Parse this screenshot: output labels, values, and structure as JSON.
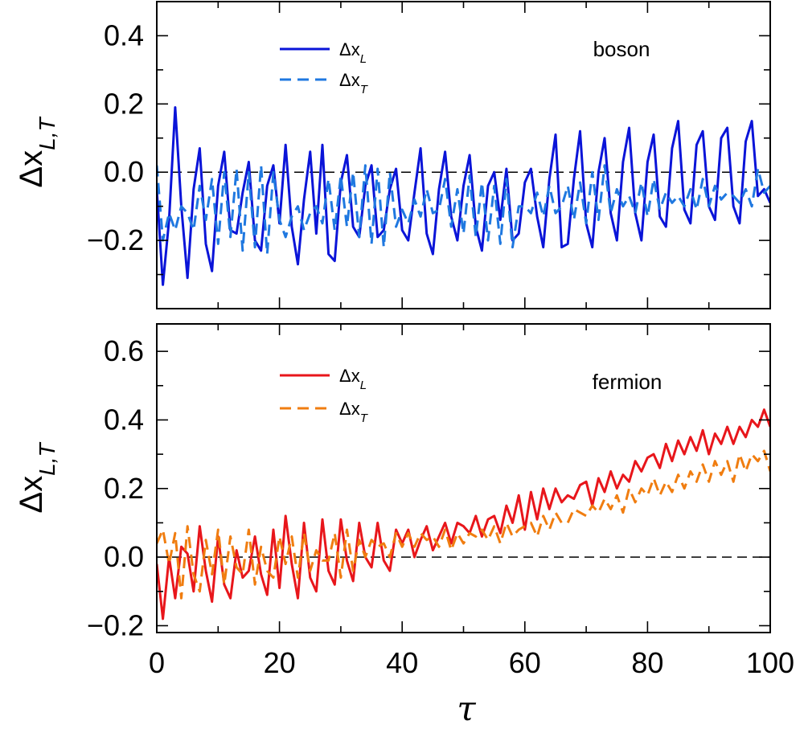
{
  "chart_data": [
    {
      "type": "line",
      "annotation": "boson",
      "title": "",
      "xlabel": "",
      "ylabel_main": "Δx",
      "ylabel_sub": "L,T",
      "xlim": [
        0,
        100
      ],
      "ylim": [
        -0.4,
        0.5
      ],
      "yticks": [
        -0.2,
        0.0,
        0.2,
        0.4
      ],
      "ytick_labels": [
        "−0.2",
        "0.0",
        "0.2",
        "0.4"
      ],
      "xticks": [
        0,
        20,
        40,
        60,
        80,
        100
      ],
      "reference_line_y": 0,
      "legend_position": "top-center",
      "series": [
        {
          "label_main": "Δx",
          "label_sub": "L",
          "color": "#0a14d8",
          "style": "solid",
          "x": [
            0,
            1,
            2,
            3,
            4,
            5,
            6,
            7,
            8,
            9,
            10,
            11,
            12,
            13,
            14,
            15,
            16,
            17,
            18,
            19,
            20,
            21,
            22,
            23,
            24,
            25,
            26,
            27,
            28,
            29,
            30,
            31,
            32,
            33,
            34,
            35,
            36,
            37,
            38,
            39,
            40,
            41,
            42,
            43,
            44,
            45,
            46,
            47,
            48,
            49,
            50,
            51,
            52,
            53,
            54,
            55,
            56,
            57,
            58,
            59,
            60,
            61,
            62,
            63,
            64,
            65,
            66,
            67,
            68,
            69,
            70,
            71,
            72,
            73,
            74,
            75,
            76,
            77,
            78,
            79,
            80,
            81,
            82,
            83,
            84,
            85,
            86,
            87,
            88,
            89,
            90,
            91,
            92,
            93,
            94,
            95,
            96,
            97,
            98,
            99,
            100
          ],
          "y": [
            -0.05,
            -0.33,
            -0.14,
            0.19,
            -0.1,
            -0.31,
            -0.05,
            0.07,
            -0.21,
            -0.29,
            -0.04,
            0.06,
            -0.17,
            -0.18,
            -0.06,
            0.03,
            -0.2,
            -0.23,
            -0.04,
            0.02,
            -0.15,
            0.08,
            -0.16,
            -0.27,
            -0.08,
            0.06,
            -0.18,
            0.08,
            -0.24,
            -0.26,
            -0.03,
            0.05,
            -0.16,
            -0.19,
            -0.04,
            0.02,
            -0.19,
            -0.17,
            -0.05,
            0.01,
            -0.17,
            -0.2,
            -0.06,
            0.07,
            -0.18,
            -0.24,
            -0.05,
            0.06,
            -0.13,
            -0.2,
            -0.04,
            0.05,
            -0.16,
            -0.23,
            -0.04,
            0.0,
            -0.14,
            0.01,
            -0.2,
            -0.18,
            -0.03,
            0.01,
            -0.13,
            -0.22,
            -0.02,
            0.11,
            -0.22,
            -0.21,
            -0.02,
            0.12,
            -0.15,
            -0.22,
            0.0,
            0.1,
            -0.12,
            -0.2,
            0.03,
            0.13,
            -0.12,
            -0.2,
            0.03,
            0.11,
            -0.13,
            -0.16,
            0.07,
            0.15,
            -0.11,
            -0.15,
            0.08,
            0.12,
            -0.1,
            -0.14,
            0.1,
            0.13,
            -0.1,
            -0.15,
            0.09,
            0.15,
            -0.07,
            -0.05,
            -0.09
          ]
        },
        {
          "label_main": "Δx",
          "label_sub": "T",
          "color": "#1f78e0",
          "style": "dashed",
          "x": [
            0,
            1,
            2,
            3,
            4,
            5,
            6,
            7,
            8,
            9,
            10,
            11,
            12,
            13,
            14,
            15,
            16,
            17,
            18,
            19,
            20,
            21,
            22,
            23,
            24,
            25,
            26,
            27,
            28,
            29,
            30,
            31,
            32,
            33,
            34,
            35,
            36,
            37,
            38,
            39,
            40,
            41,
            42,
            43,
            44,
            45,
            46,
            47,
            48,
            49,
            50,
            51,
            52,
            53,
            54,
            55,
            56,
            57,
            58,
            59,
            60,
            61,
            62,
            63,
            64,
            65,
            66,
            67,
            68,
            69,
            70,
            71,
            72,
            73,
            74,
            75,
            76,
            77,
            78,
            79,
            80,
            81,
            82,
            83,
            84,
            85,
            86,
            87,
            88,
            89,
            90,
            91,
            92,
            93,
            94,
            95,
            96,
            97,
            98,
            99,
            100
          ],
          "y": [
            0.02,
            -0.2,
            -0.12,
            -0.17,
            -0.1,
            -0.12,
            -0.17,
            -0.04,
            -0.14,
            -0.02,
            -0.21,
            0.0,
            -0.19,
            0.01,
            -0.23,
            0.0,
            -0.22,
            0.02,
            -0.24,
            0.0,
            -0.14,
            -0.19,
            -0.13,
            -0.1,
            -0.17,
            -0.12,
            -0.1,
            -0.15,
            -0.02,
            -0.17,
            -0.01,
            -0.16,
            0.0,
            -0.19,
            0.02,
            -0.21,
            0.01,
            -0.22,
            0.0,
            -0.16,
            -0.11,
            -0.15,
            -0.08,
            -0.13,
            -0.05,
            -0.12,
            -0.11,
            -0.02,
            -0.16,
            -0.05,
            -0.18,
            -0.01,
            -0.19,
            -0.03,
            -0.2,
            -0.04,
            -0.21,
            -0.02,
            -0.22,
            -0.1,
            -0.1,
            -0.12,
            -0.06,
            -0.13,
            -0.04,
            -0.12,
            -0.1,
            -0.04,
            -0.14,
            -0.03,
            -0.15,
            0.0,
            -0.14,
            0.02,
            -0.12,
            -0.05,
            -0.1,
            -0.07,
            -0.12,
            -0.03,
            -0.13,
            -0.02,
            -0.11,
            -0.06,
            -0.09,
            -0.07,
            -0.1,
            -0.05,
            -0.11,
            -0.02,
            -0.1,
            -0.04,
            -0.08,
            -0.06,
            -0.07,
            -0.09,
            -0.05,
            -0.1,
            0.01,
            -0.06,
            -0.04
          ]
        }
      ]
    },
    {
      "type": "line",
      "annotation": "fermion",
      "title": "",
      "xlabel": "τ",
      "ylabel_main": "Δx",
      "ylabel_sub": "L,T",
      "xlim": [
        0,
        100
      ],
      "ylim": [
        -0.22,
        0.68
      ],
      "yticks": [
        -0.2,
        0.0,
        0.2,
        0.4,
        0.6
      ],
      "ytick_labels": [
        "−0.2",
        "0.0",
        "0.2",
        "0.4",
        "0.6"
      ],
      "xticks": [
        0,
        20,
        40,
        60,
        80,
        100
      ],
      "xtick_labels": [
        "0",
        "20",
        "40",
        "60",
        "80",
        "100"
      ],
      "reference_line_y": 0,
      "legend_position": "top-center",
      "series": [
        {
          "label_main": "Δx",
          "label_sub": "L",
          "color": "#e8161b",
          "style": "solid",
          "x": [
            0,
            1,
            2,
            3,
            4,
            5,
            6,
            7,
            8,
            9,
            10,
            11,
            12,
            13,
            14,
            15,
            16,
            17,
            18,
            19,
            20,
            21,
            22,
            23,
            24,
            25,
            26,
            27,
            28,
            29,
            30,
            31,
            32,
            33,
            34,
            35,
            36,
            37,
            38,
            39,
            40,
            41,
            42,
            43,
            44,
            45,
            46,
            47,
            48,
            49,
            50,
            51,
            52,
            53,
            54,
            55,
            56,
            57,
            58,
            59,
            60,
            61,
            62,
            63,
            64,
            65,
            66,
            67,
            68,
            69,
            70,
            71,
            72,
            73,
            74,
            75,
            76,
            77,
            78,
            79,
            80,
            81,
            82,
            83,
            84,
            85,
            86,
            87,
            88,
            89,
            90,
            91,
            92,
            93,
            94,
            95,
            96,
            97,
            98,
            99,
            100
          ],
          "y": [
            -0.02,
            -0.18,
            0.0,
            -0.12,
            0.03,
            0.01,
            -0.1,
            0.09,
            -0.04,
            -0.13,
            0.06,
            -0.08,
            -0.12,
            0.02,
            -0.06,
            -0.04,
            0.06,
            -0.05,
            -0.11,
            0.08,
            -0.09,
            0.12,
            -0.02,
            -0.12,
            0.1,
            -0.06,
            -0.1,
            0.11,
            -0.04,
            -0.08,
            0.11,
            -0.01,
            -0.07,
            0.1,
            0.0,
            -0.03,
            0.1,
            -0.01,
            -0.04,
            0.08,
            0.04,
            0.08,
            0.0,
            0.05,
            0.09,
            0.02,
            0.06,
            0.1,
            0.04,
            0.1,
            0.09,
            0.07,
            0.12,
            0.06,
            0.11,
            0.12,
            0.07,
            0.15,
            0.1,
            0.18,
            0.08,
            0.19,
            0.11,
            0.2,
            0.14,
            0.2,
            0.16,
            0.18,
            0.17,
            0.21,
            0.22,
            0.15,
            0.23,
            0.19,
            0.25,
            0.2,
            0.24,
            0.22,
            0.28,
            0.25,
            0.29,
            0.3,
            0.26,
            0.33,
            0.28,
            0.34,
            0.3,
            0.35,
            0.31,
            0.37,
            0.3,
            0.36,
            0.33,
            0.38,
            0.33,
            0.38,
            0.35,
            0.4,
            0.38,
            0.43,
            0.38
          ]
        },
        {
          "label_main": "Δx",
          "label_sub": "T",
          "color": "#f07d10",
          "style": "dashed",
          "x": [
            0,
            1,
            2,
            3,
            4,
            5,
            6,
            7,
            8,
            9,
            10,
            11,
            12,
            13,
            14,
            15,
            16,
            17,
            18,
            19,
            20,
            21,
            22,
            23,
            24,
            25,
            26,
            27,
            28,
            29,
            30,
            31,
            32,
            33,
            34,
            35,
            36,
            37,
            38,
            39,
            40,
            41,
            42,
            43,
            44,
            45,
            46,
            47,
            48,
            49,
            50,
            51,
            52,
            53,
            54,
            55,
            56,
            57,
            58,
            59,
            60,
            61,
            62,
            63,
            64,
            65,
            66,
            67,
            68,
            69,
            70,
            71,
            72,
            73,
            74,
            75,
            76,
            77,
            78,
            79,
            80,
            81,
            82,
            83,
            84,
            85,
            86,
            87,
            88,
            89,
            90,
            91,
            92,
            93,
            94,
            95,
            96,
            97,
            98,
            99,
            100
          ],
          "y": [
            0.04,
            0.08,
            -0.02,
            0.07,
            -0.12,
            0.09,
            -0.05,
            -0.1,
            0.05,
            -0.05,
            0.08,
            -0.08,
            0.06,
            -0.03,
            -0.05,
            0.08,
            -0.08,
            0.03,
            -0.04,
            -0.06,
            0.06,
            -0.02,
            0.06,
            -0.06,
            0.07,
            -0.04,
            0.02,
            -0.01,
            -0.01,
            0.07,
            -0.06,
            0.08,
            -0.04,
            0.05,
            0.0,
            0.05,
            0.03,
            0.04,
            0.0,
            0.07,
            0.03,
            0.07,
            0.03,
            0.07,
            0.05,
            0.06,
            0.03,
            0.08,
            0.02,
            0.07,
            0.04,
            0.07,
            0.06,
            0.08,
            0.05,
            0.09,
            0.04,
            0.1,
            0.06,
            0.08,
            0.09,
            0.1,
            0.06,
            0.12,
            0.08,
            0.13,
            0.1,
            0.1,
            0.14,
            0.13,
            0.12,
            0.15,
            0.13,
            0.17,
            0.14,
            0.18,
            0.13,
            0.2,
            0.16,
            0.2,
            0.18,
            0.23,
            0.18,
            0.22,
            0.19,
            0.24,
            0.2,
            0.25,
            0.22,
            0.27,
            0.22,
            0.28,
            0.24,
            0.28,
            0.22,
            0.3,
            0.25,
            0.3,
            0.28,
            0.31,
            0.25
          ]
        }
      ]
    }
  ]
}
